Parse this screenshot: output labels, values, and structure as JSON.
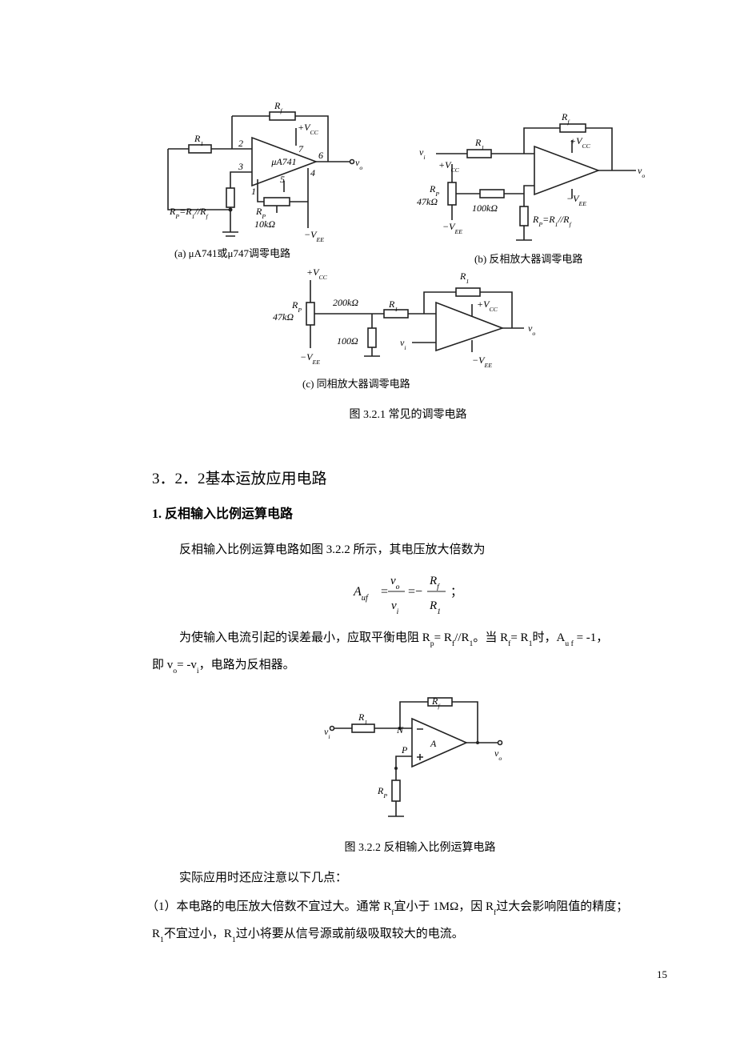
{
  "figure_1": {
    "panel_a": {
      "labels": [
        [
          "R",
          "f"
        ],
        [
          "R",
          "1"
        ],
        [
          "+V",
          "CC"
        ],
        [
          "2"
        ],
        [
          "3"
        ],
        [
          "6"
        ],
        [
          "7"
        ],
        [
          "4"
        ],
        [
          "5"
        ],
        [
          "1"
        ],
        [
          "μA741"
        ],
        [
          "v",
          "o"
        ],
        [
          "R",
          "P",
          "=R",
          "1",
          "//R",
          "f"
        ],
        [
          "R",
          "P"
        ],
        [
          "10kΩ"
        ],
        [
          "−V",
          "EE"
        ]
      ],
      "caption": "(a) μA741或μ747调零电路"
    },
    "panel_b": {
      "labels": [
        [
          "R",
          "f"
        ],
        [
          "+V",
          "CC"
        ],
        [
          "v",
          "i"
        ],
        [
          "R",
          "1"
        ],
        [
          "+V",
          "CC"
        ],
        [
          "R",
          "P"
        ],
        [
          "47kΩ"
        ],
        [
          "100kΩ"
        ],
        [
          "−V",
          "EE"
        ],
        [
          "−V",
          "EE"
        ],
        [
          "R",
          "P",
          "=R",
          "1",
          "//R",
          "f"
        ],
        [
          "v",
          "o"
        ]
      ],
      "caption": "(b) 反相放大器调零电路"
    },
    "panel_c": {
      "labels": [
        [
          "+V",
          "CC"
        ],
        [
          "R",
          "1"
        ],
        [
          "R",
          "P"
        ],
        [
          "47kΩ"
        ],
        [
          "200kΩ"
        ],
        [
          "R",
          "1"
        ],
        [
          "+V",
          "CC"
        ],
        [
          "100Ω"
        ],
        [
          "v",
          "i"
        ],
        [
          "−V",
          "EE"
        ],
        [
          "−V",
          "EE"
        ],
        [
          "v",
          "o"
        ]
      ],
      "caption": "(c) 同相放大器调零电路"
    },
    "caption": "图 3.2.1  常见的调零电路"
  },
  "section_title": "3．2．2基本运放应用电路",
  "subsection_title": "1. 反相输入比例运算电路",
  "paragraph_1": [
    "反相输入比例运算电路如图 3.2.2 所示，其电压放大倍数为"
  ],
  "formula": {
    "lhs": [
      "A",
      "uf"
    ],
    "eq_1": "=",
    "num_1": [
      "v",
      "o"
    ],
    "den_1": [
      "v",
      "i"
    ],
    "eq_2": "=−",
    "num_2": [
      "R",
      "f"
    ],
    "den_2": [
      "R",
      "1"
    ],
    "end": "；"
  },
  "paragraph_2": [
    [
      "为使输入电流引起的误差最小，应取平衡电阻 R",
      "p",
      "= R",
      "f",
      "//R",
      "1",
      "。当 R",
      "f",
      "= R",
      "1",
      "时，A",
      "u f",
      " = -1，"
    ],
    [
      "即 v",
      "o",
      "= -v",
      "i",
      "，电路为反相器。"
    ]
  ],
  "figure_2": {
    "labels": [
      [
        "R",
        "f"
      ],
      [
        "R",
        "1"
      ],
      [
        "v",
        "i"
      ],
      [
        "N"
      ],
      [
        "P"
      ],
      [
        "A"
      ],
      [
        "v",
        "o"
      ],
      [
        "R",
        "P"
      ]
    ],
    "caption": "图 3.2.2  反相输入比例运算电路"
  },
  "paragraph_3": [
    "实际应用时还应注意以下几点："
  ],
  "paragraph_4": [
    [
      "（1）本电路的电压放大倍数不宜过大。通常 R",
      "f",
      "宜小于 1MΩ，因 R",
      "f",
      "过大会影响阻值的精度；"
    ],
    [
      "R",
      "1",
      "不宜过小，R",
      "1",
      "过小将要从信号源或前级吸取较大的电流。"
    ]
  ],
  "page_number": "15"
}
